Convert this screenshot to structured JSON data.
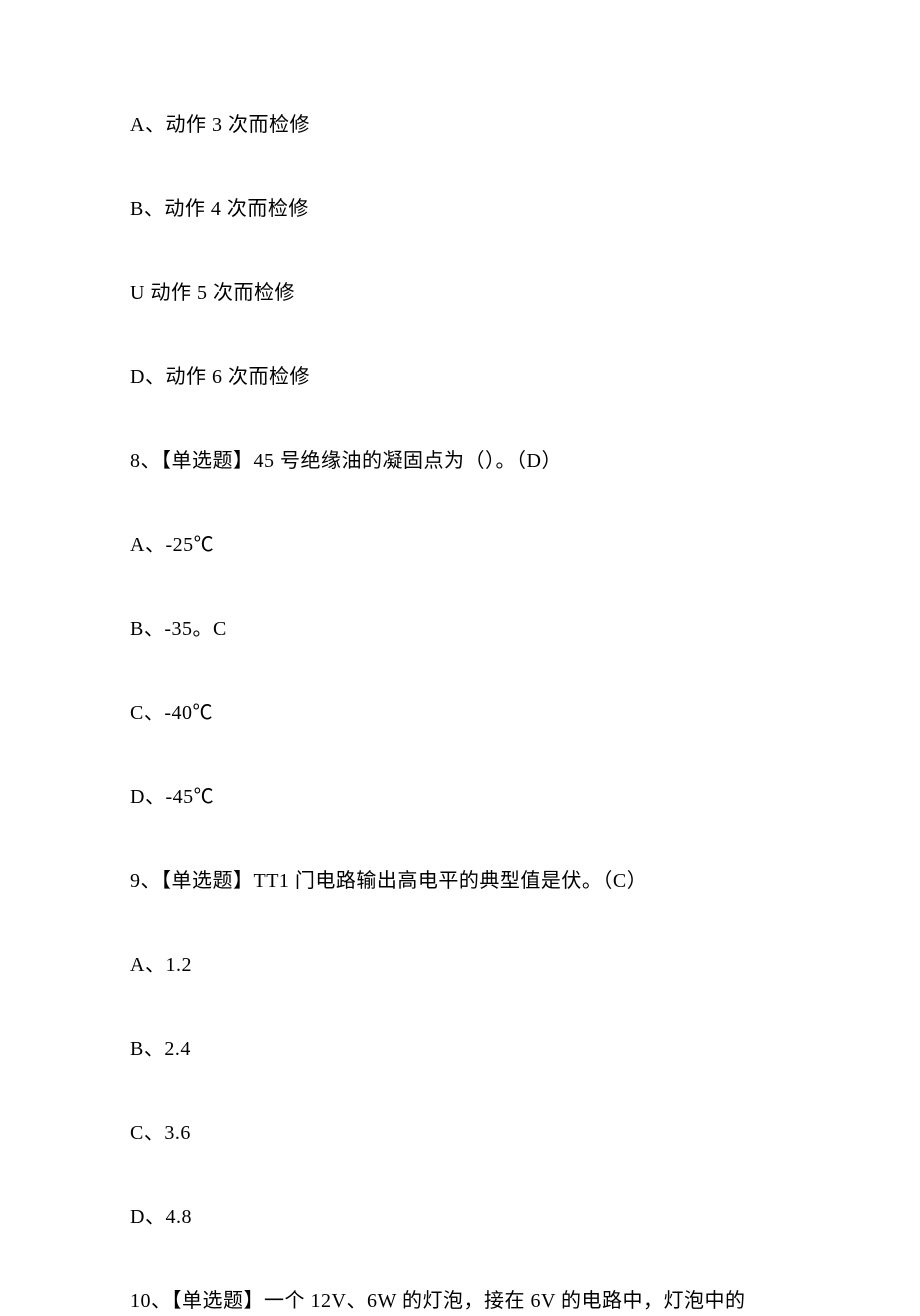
{
  "lines": [
    {
      "text": "A、动作 3 次而检修"
    },
    {
      "text": "B、动作 4 次而检修"
    },
    {
      "text": "U 动作 5 次而检修"
    },
    {
      "text": "D、动作 6 次而检修"
    },
    {
      "text": "8、【单选题】45 号绝缘油的凝固点为（）。（D）"
    },
    {
      "text": "A、-25℃"
    },
    {
      "text": "B、-35。C"
    },
    {
      "text": "C、-40℃"
    },
    {
      "text": "D、-45℃"
    },
    {
      "text": "9、【单选题】TT1 门电路输出高电平的典型值是伏。（C）"
    },
    {
      "text": "A、1.2"
    },
    {
      "text": "B、2.4"
    },
    {
      "text": "C、3.6"
    },
    {
      "text": "D、4.8"
    },
    {
      "text": "10、【单选题】一个 12V、6W 的灯泡，接在 6V 的电路中，灯泡中的"
    }
  ]
}
